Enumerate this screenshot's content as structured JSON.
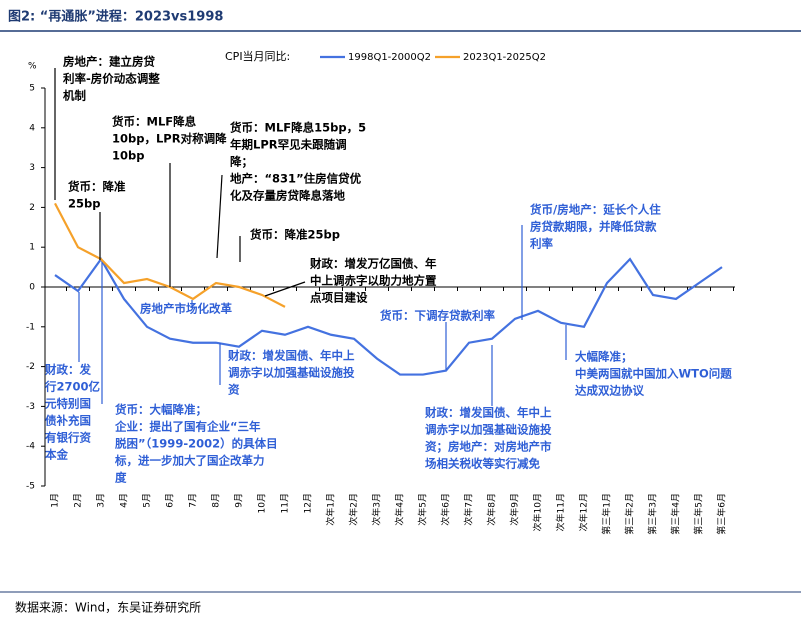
{
  "title": "图2: “再通胀”进程：2023vs1998",
  "source": "数据来源：Wind，东吴证券研究所",
  "chart_data": {
    "type": "line",
    "legend_title": "CPI当月同比:",
    "y_unit": "%",
    "categories": [
      "1月",
      "2月",
      "3月",
      "4月",
      "5月",
      "6月",
      "7月",
      "8月",
      "9月",
      "10月",
      "11月",
      "12月",
      "次年1月",
      "次年2月",
      "次年3月",
      "次年4月",
      "次年5月",
      "次年6月",
      "次年7月",
      "次年8月",
      "次年9月",
      "次年10月",
      "次年11月",
      "次年12月",
      "第三年1月",
      "第三年2月",
      "第三年3月",
      "第三年4月",
      "第三年5月",
      "第三年6月"
    ],
    "series": [
      {
        "name": "1998Q1-2000Q2",
        "color": "#4472e0",
        "values": [
          0.3,
          -0.1,
          0.7,
          -0.3,
          -1.0,
          -1.3,
          -1.4,
          -1.4,
          -1.5,
          -1.1,
          -1.2,
          -1.0,
          -1.2,
          -1.3,
          -1.8,
          -2.2,
          -2.2,
          -2.1,
          -1.4,
          -1.3,
          -0.8,
          -0.6,
          -0.9,
          -1.0,
          0.1,
          0.7,
          -0.2,
          -0.3,
          0.1,
          0.5
        ]
      },
      {
        "name": "2023Q1-2025Q2",
        "color": "#f5a12a",
        "values": [
          2.1,
          1.0,
          0.7,
          0.1,
          0.2,
          0.0,
          -0.3,
          0.1,
          0.0,
          -0.2,
          -0.5,
          null,
          null,
          null,
          null,
          null,
          null,
          null,
          null,
          null,
          null,
          null,
          null,
          null,
          null,
          null,
          null,
          null,
          null,
          null
        ]
      }
    ],
    "ylim": [
      -5,
      5
    ],
    "yticks": [
      -5,
      -4,
      -3,
      -2,
      -1,
      0,
      1,
      2,
      3,
      4,
      5
    ],
    "annotations": [
      [
        "房地产：建立房贷",
        "利率-房价动态调整",
        "机制"
      ],
      [
        "货币：MLF降息",
        "10bp，LPR对称调降",
        "10bp"
      ],
      [
        "货币：MLF降息15bp，5",
        "年期LPR罕见未跟随调",
        "降；",
        "地产：“831”住房信贷优",
        "化及存量房贷降息落地"
      ],
      [
        "货币：降准",
        "25bp"
      ],
      [
        "货币：降准25bp"
      ],
      [
        "财政：增发万亿国债、年",
        "中上调赤字以助力地方置",
        "点项目建设"
      ],
      [
        "房地产市场化改革"
      ],
      [
        "财政：发",
        "行2700亿",
        "元特别国",
        "债补充国",
        "有银行资",
        "本金"
      ],
      [
        "货币：大幅降准；",
        "企业：提出了国有企业“三年",
        "脱困”（1999-2002）的具体目",
        "标，进一步加大了国企改革力",
        "度"
      ],
      [
        "财政：增发国债、年中上",
        "调赤字以加强基础设施投",
        "资"
      ],
      [
        "货币：下调存贷款利率"
      ],
      [
        "财政：增发国债、年中上",
        "调赤字以加强基础设施投",
        "资；房地产：对房地产市",
        "场相关税收等实行减免"
      ],
      [
        "货币/房地产：延长个人住",
        "房贷款期限，并降低贷款",
        "利率"
      ],
      [
        "大幅降准；",
        "中美两国就中国加入WTO问题",
        "达成双边协议"
      ]
    ]
  }
}
